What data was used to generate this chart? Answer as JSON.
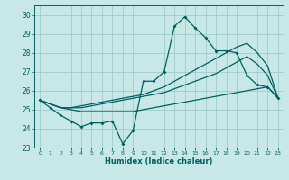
{
  "xlabel": "Humidex (Indice chaleur)",
  "background_color": "#c8e8e8",
  "grid_color": "#a0cccc",
  "line_color": "#006060",
  "xlim": [
    -0.5,
    23.5
  ],
  "ylim": [
    23.0,
    30.5
  ],
  "yticks": [
    23,
    24,
    25,
    26,
    27,
    28,
    29,
    30
  ],
  "xticks": [
    0,
    1,
    2,
    3,
    4,
    5,
    6,
    7,
    8,
    9,
    10,
    11,
    12,
    13,
    14,
    15,
    16,
    17,
    18,
    19,
    20,
    21,
    22,
    23
  ],
  "main_series": [
    25.5,
    25.1,
    24.7,
    24.4,
    24.1,
    24.3,
    24.3,
    24.4,
    23.2,
    23.9,
    26.5,
    26.5,
    27.0,
    29.4,
    29.9,
    29.3,
    28.8,
    28.1,
    28.1,
    28.0,
    26.8,
    26.3,
    26.2,
    25.6
  ],
  "line1": [
    25.5,
    25.3,
    25.1,
    25.0,
    24.9,
    24.9,
    24.9,
    24.9,
    24.9,
    24.9,
    25.0,
    25.1,
    25.2,
    25.3,
    25.4,
    25.5,
    25.6,
    25.7,
    25.8,
    25.9,
    26.0,
    26.1,
    26.2,
    25.6
  ],
  "line2": [
    25.5,
    25.3,
    25.1,
    25.1,
    25.1,
    25.2,
    25.3,
    25.4,
    25.5,
    25.6,
    25.7,
    25.8,
    25.9,
    26.1,
    26.3,
    26.5,
    26.7,
    26.9,
    27.2,
    27.5,
    27.8,
    27.4,
    26.8,
    25.6
  ],
  "line3": [
    25.5,
    25.3,
    25.1,
    25.1,
    25.2,
    25.3,
    25.4,
    25.5,
    25.6,
    25.7,
    25.8,
    26.0,
    26.2,
    26.5,
    26.8,
    27.1,
    27.4,
    27.7,
    28.0,
    28.3,
    28.5,
    28.0,
    27.3,
    25.6
  ]
}
